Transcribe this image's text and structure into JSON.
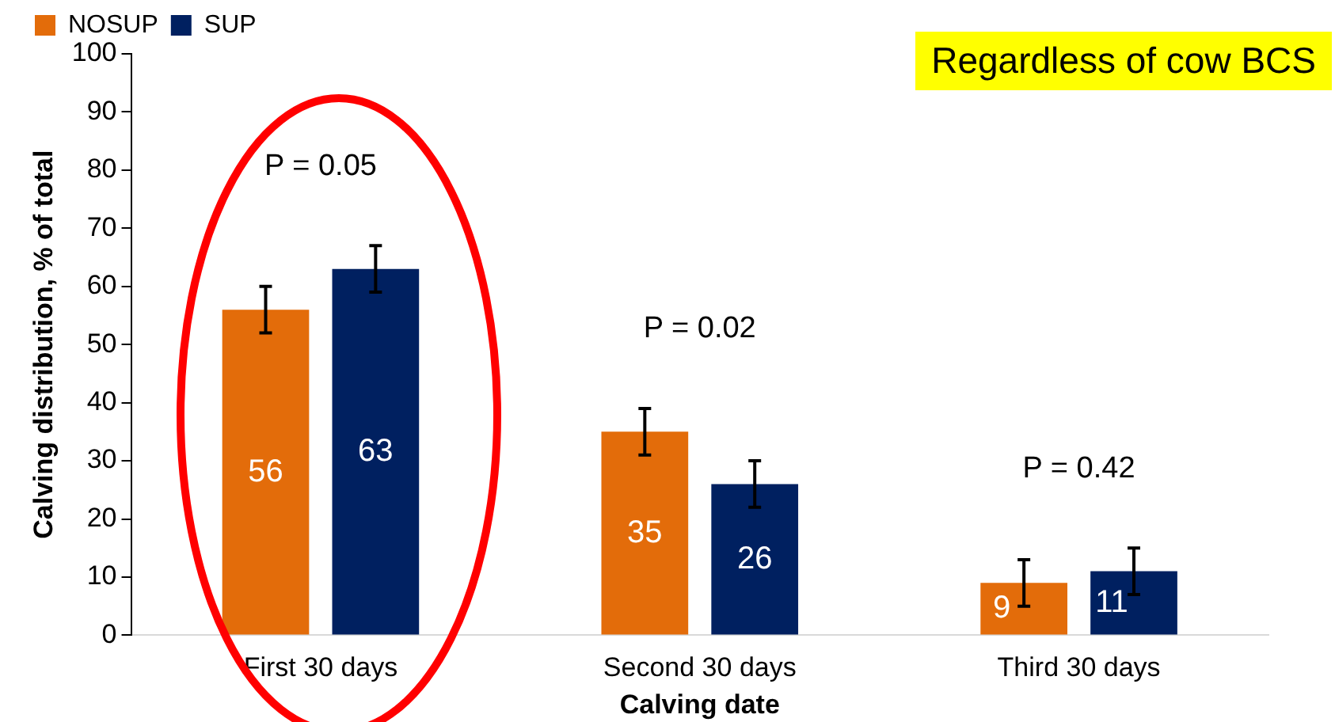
{
  "chart_data": {
    "type": "bar",
    "xlabel": "Calving date",
    "ylabel": "Calving distribution, % of total",
    "categories": [
      "First 30 days",
      "Second 30 days",
      "Third 30 days"
    ],
    "series": [
      {
        "name": "NOSUP",
        "color": "#e36c0a",
        "values": [
          56,
          35,
          9
        ],
        "errors": [
          4,
          4,
          4
        ]
      },
      {
        "name": "SUP",
        "color": "#002060",
        "values": [
          63,
          26,
          11
        ],
        "errors": [
          4,
          4,
          4
        ]
      }
    ],
    "ylim": [
      0,
      100
    ],
    "yticks": [
      0,
      10,
      20,
      30,
      40,
      50,
      60,
      70,
      80,
      90,
      100
    ],
    "grid": false,
    "legend": "top left",
    "data_labels": true,
    "annotations": [
      "P = 0.05",
      "P = 0.02",
      "P = 0.42",
      "Regardless of cow BCS"
    ]
  }
}
